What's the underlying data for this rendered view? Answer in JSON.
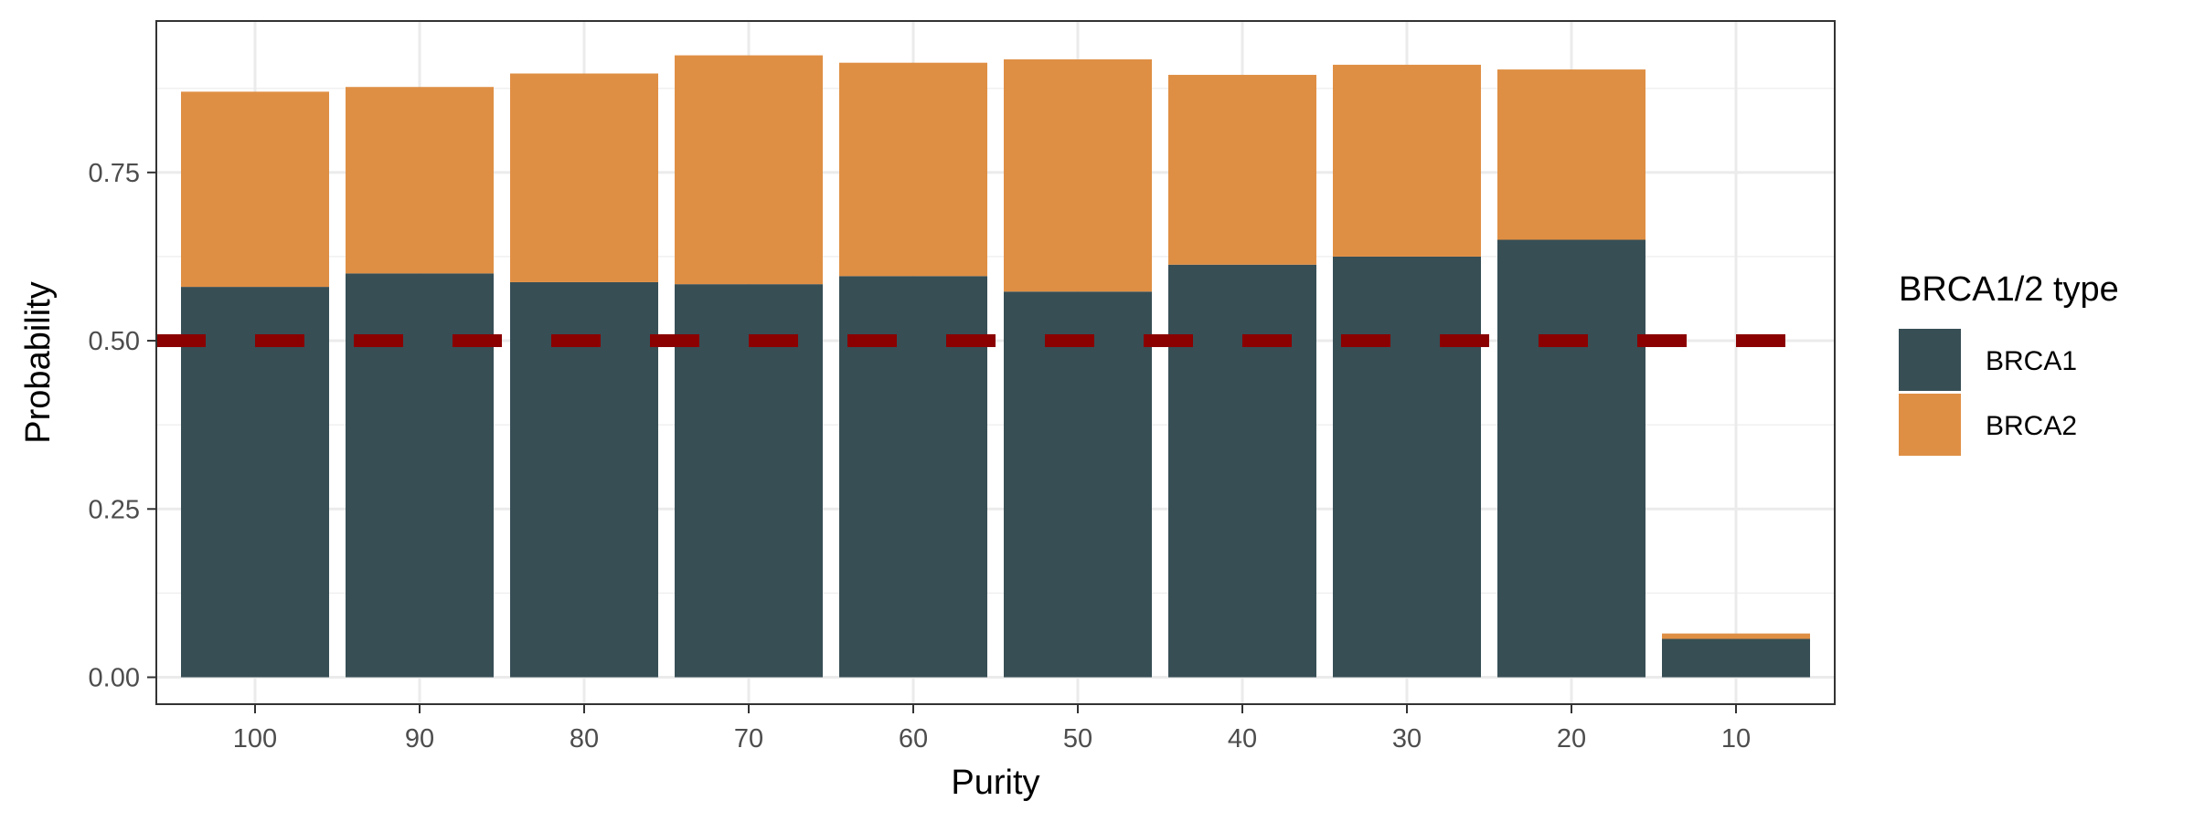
{
  "chart_data": {
    "type": "bar",
    "stacked": true,
    "categories": [
      "100",
      "90",
      "80",
      "70",
      "60",
      "50",
      "40",
      "30",
      "20",
      "10"
    ],
    "series": [
      {
        "name": "BRCA1",
        "color": "#374e55",
        "values": [
          0.58,
          0.6,
          0.587,
          0.584,
          0.596,
          0.573,
          0.613,
          0.625,
          0.65,
          0.057
        ]
      },
      {
        "name": "BRCA2",
        "color": "#df8f44",
        "values": [
          0.29,
          0.277,
          0.31,
          0.34,
          0.317,
          0.345,
          0.282,
          0.285,
          0.253,
          0.008
        ]
      }
    ],
    "xlabel": "Purity",
    "ylabel": "Probability",
    "ylim": [
      -0.04,
      0.975
    ],
    "yticks": [
      0.0,
      0.25,
      0.5,
      0.75
    ],
    "ytick_labels": [
      "0.00",
      "0.25",
      "0.50",
      "0.75"
    ],
    "reference_line": {
      "y": 0.5,
      "style": "dashed",
      "color": "#8b0000"
    },
    "legend": {
      "title": "BRCA1/2 type",
      "position": "right"
    },
    "grid": true
  }
}
